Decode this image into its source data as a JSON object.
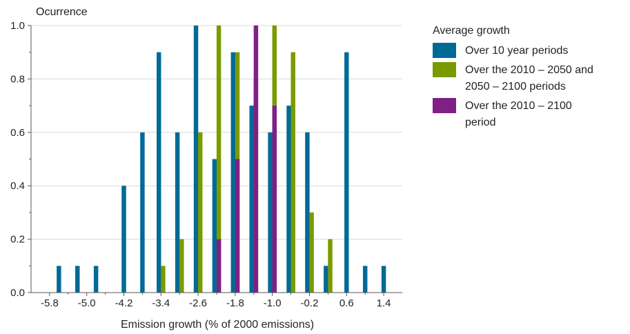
{
  "chart_data": {
    "type": "bar",
    "ylabel": "Ocurrence",
    "xlabel": "Emission growth (% of 2000 emissions)",
    "ylim": [
      0,
      1.0
    ],
    "yticks": [
      0.0,
      0.2,
      0.4,
      0.6,
      0.8,
      1.0
    ],
    "ytick_labels": [
      "0.0",
      "0.2",
      "0.4",
      "0.6",
      "0.8",
      "1.0"
    ],
    "xlim": [
      -6.2,
      1.8
    ],
    "xticks": [
      -5.8,
      -5.0,
      -4.2,
      -3.4,
      -2.6,
      -1.8,
      -1.0,
      -0.2,
      0.6,
      1.4
    ],
    "xtick_labels": [
      "-5.8",
      "-5.0",
      "-4.2",
      "-3.4",
      "-2.6",
      "-1.8",
      "-1.0",
      "-0.2",
      "0.6",
      "1.4"
    ],
    "bin_width": 0.2,
    "grid": true,
    "legend_title": "Average growth",
    "legend_position": "right",
    "series": [
      {
        "name": "Over 10 year periods",
        "color": "#006a96",
        "points": [
          {
            "x": -5.6,
            "y": 0.1
          },
          {
            "x": -5.2,
            "y": 0.1
          },
          {
            "x": -4.8,
            "y": 0.1
          },
          {
            "x": -4.2,
            "y": 0.4
          },
          {
            "x": -3.8,
            "y": 0.6
          },
          {
            "x": -3.4,
            "y": 0.9
          },
          {
            "x": -3.0,
            "y": 0.6
          },
          {
            "x": -2.6,
            "y": 1.0
          },
          {
            "x": -2.2,
            "y": 0.5
          },
          {
            "x": -1.8,
            "y": 0.9
          },
          {
            "x": -1.4,
            "y": 0.7
          },
          {
            "x": -1.0,
            "y": 0.6
          },
          {
            "x": -0.6,
            "y": 0.7
          },
          {
            "x": -0.2,
            "y": 0.6
          },
          {
            "x": 0.2,
            "y": 0.1
          },
          {
            "x": 0.6,
            "y": 0.9
          },
          {
            "x": 1.0,
            "y": 0.1
          },
          {
            "x": 1.4,
            "y": 0.1
          }
        ]
      },
      {
        "name": "Over the 2010 – 2050 and 2050 – 2100 periods",
        "label_lines": [
          "Over the 2010 – 2050 and",
          "2050 – 2100 periods"
        ],
        "color": "#7a9a01",
        "points": [
          {
            "x": -3.4,
            "y": 0.1
          },
          {
            "x": -3.0,
            "y": 0.2
          },
          {
            "x": -2.6,
            "y": 0.6
          },
          {
            "x": -2.2,
            "y": 1.0
          },
          {
            "x": -1.8,
            "y": 0.9
          },
          {
            "x": -1.4,
            "y": 0.8
          },
          {
            "x": -1.0,
            "y": 1.0
          },
          {
            "x": -0.6,
            "y": 0.9
          },
          {
            "x": -0.2,
            "y": 0.3
          },
          {
            "x": 0.2,
            "y": 0.2
          }
        ]
      },
      {
        "name": "Over the 2010 – 2100 period",
        "label_lines": [
          "Over the 2010 – 2100",
          "period"
        ],
        "color": "#7f1f87",
        "points": [
          {
            "x": -2.2,
            "y": 0.2
          },
          {
            "x": -1.8,
            "y": 0.5
          },
          {
            "x": -1.4,
            "y": 1.0
          },
          {
            "x": -1.0,
            "y": 0.7
          }
        ]
      }
    ]
  }
}
